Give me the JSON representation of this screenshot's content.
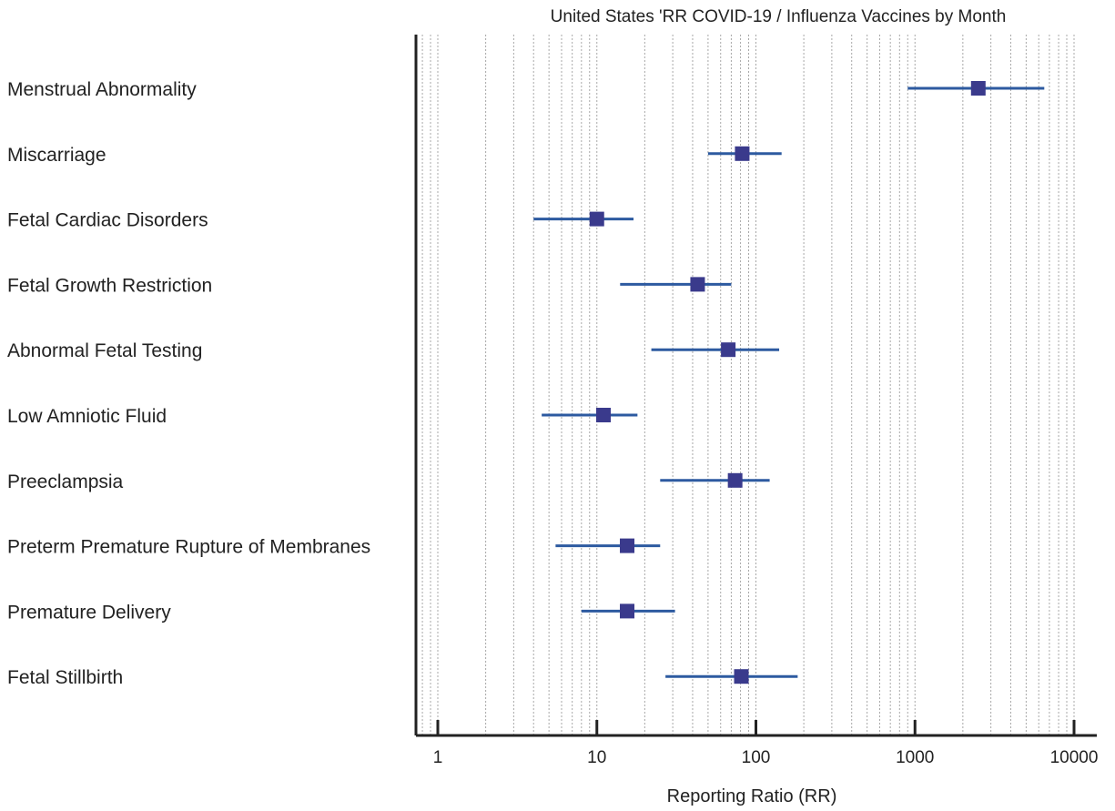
{
  "chart_data": {
    "type": "scatter",
    "subtype": "forest-plot",
    "title": "United States 'RR COVID-19 / Influenza Vaccines by Month",
    "xlabel": "Reporting Ratio (RR)",
    "ylabel": "",
    "x_scale": "log",
    "xlim": [
      0.75,
      12000
    ],
    "x_ticks": [
      1,
      10,
      100,
      1000,
      10000
    ],
    "x_tick_labels": [
      "1",
      "10",
      "100",
      "1000",
      "10000"
    ],
    "grid": "vertical-minor-dotted",
    "colors": {
      "point": "#3a3a8c",
      "ci_line": "#2d5aa0",
      "axis": "#222222",
      "grid": "#a8a8a8"
    },
    "categories": [
      "Menstrual Abnormality",
      "Miscarriage",
      "Fetal Cardiac Disorders",
      "Fetal Growth Restriction",
      "Abnormal Fetal Testing",
      "Low Amniotic Fluid",
      "Preeclampsia",
      "Preterm Premature Rupture of Membranes",
      "Premature Delivery",
      "Fetal Stillbirth"
    ],
    "series": [
      {
        "values": [
          2500,
          82,
          10,
          43,
          67,
          11,
          74,
          15.5,
          15.5,
          81
        ],
        "ci_lower": [
          900,
          50,
          4,
          14,
          22,
          4.5,
          25,
          5.5,
          8,
          27
        ],
        "ci_upper": [
          6500,
          145,
          17,
          70,
          140,
          18,
          122,
          25,
          31,
          183
        ]
      }
    ]
  }
}
